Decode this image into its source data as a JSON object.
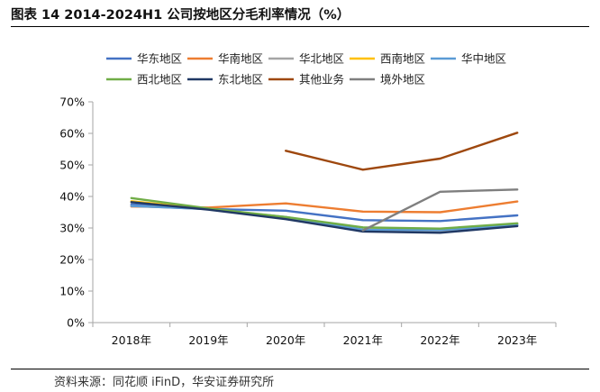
{
  "title": "图表 14 2014-2024H1 公司按地区分毛利率情况（%）",
  "source": "资料来源：同花顺 iFinD，华安证券研究所",
  "chart_data": {
    "type": "line",
    "title": "图表 14 2014-2024H1 公司按地区分毛利率情况（%）",
    "xlabel": "",
    "ylabel": "",
    "categories": [
      "2018年",
      "2019年",
      "2020年",
      "2021年",
      "2022年",
      "2023年"
    ],
    "ylim": [
      0,
      70
    ],
    "yticks": [
      "0%",
      "10%",
      "20%",
      "30%",
      "40%",
      "50%",
      "60%",
      "70%"
    ],
    "ytick_values": [
      0,
      10,
      20,
      30,
      40,
      50,
      60,
      70
    ],
    "grid": false,
    "legend_position": "top",
    "series": [
      {
        "name": "华东地区",
        "color": "#4472C4",
        "values": [
          37.5,
          36.0,
          35.5,
          32.5,
          32.2,
          34.0
        ]
      },
      {
        "name": "华南地区",
        "color": "#ED7D31",
        "values": [
          36.8,
          36.5,
          37.8,
          35.2,
          35.0,
          38.4
        ]
      },
      {
        "name": "华北地区",
        "color": "#A5A5A5",
        "values": [
          37.0,
          36.0,
          33.2,
          29.0,
          29.0,
          30.8
        ]
      },
      {
        "name": "西南地区",
        "color": "#FFC000",
        "values": [
          38.5,
          36.0,
          33.0,
          29.5,
          29.5,
          31.3
        ]
      },
      {
        "name": "华中地区",
        "color": "#5B9BD5",
        "values": [
          37.0,
          36.0,
          33.5,
          29.5,
          29.3,
          31.0
        ]
      },
      {
        "name": "西北地区",
        "color": "#70AD47",
        "values": [
          39.5,
          36.2,
          33.5,
          30.2,
          29.8,
          31.5
        ]
      },
      {
        "name": "东北地区",
        "color": "#203864",
        "values": [
          38.2,
          35.8,
          32.8,
          28.9,
          28.5,
          30.6
        ]
      },
      {
        "name": "其他业务",
        "color": "#9E480E",
        "values": [
          null,
          null,
          54.5,
          48.5,
          52.0,
          60.2
        ]
      },
      {
        "name": "境外地区",
        "color": "#7F7F7F",
        "values": [
          null,
          null,
          null,
          29.2,
          41.5,
          42.2
        ]
      }
    ]
  }
}
